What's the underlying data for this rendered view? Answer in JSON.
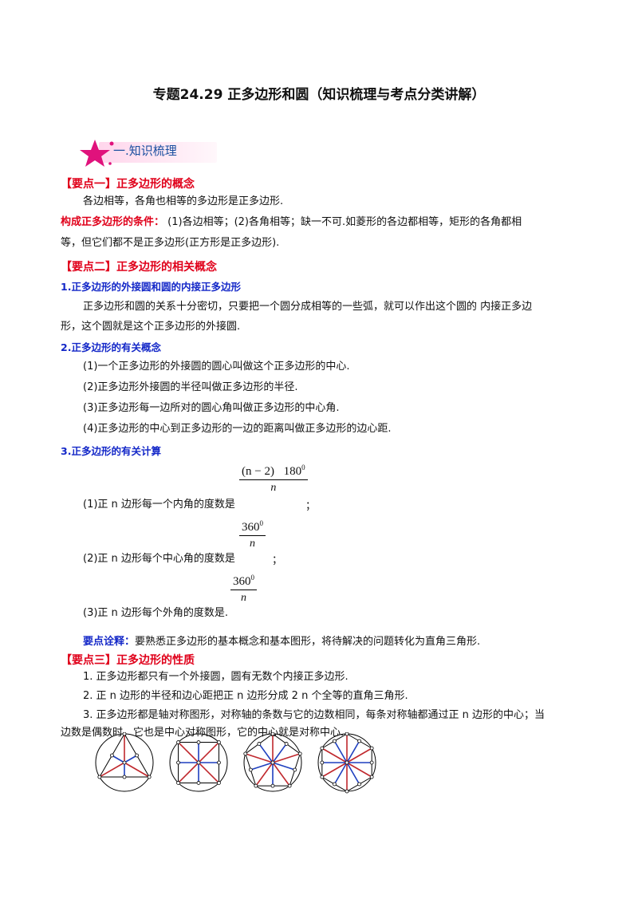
{
  "title": "专题24.29  正多边形和圆（知识梳理与考点分类讲解）",
  "banner": {
    "label": "一.知识梳理",
    "icon": "star-icon"
  },
  "section1": {
    "heading": "【要点一】正多边形的概念",
    "line1": "各边相等，各角也相等的多边形是正多边形.",
    "cond_key": "构成正多边形的条件：",
    "cond_text": "  (1)各边相等；(2)各角相等；缺一不可.如菱形的各边都相等，矩形的各角都相",
    "cond_text2": "等，但它们都不是正多边形(正方形是正多边形)."
  },
  "section2": {
    "heading": "【要点二】正多边形的相关概念",
    "sub1": "1.正多边形的外接圆和圆的内接正多边形",
    "sub1_text1": "正多边形和圆的关系十分密切，只要把一个圆分成相等的一些弧，就可以作出这个圆的 内接正多边",
    "sub1_text2": "形，这个圆就是这个正多边形的外接圆.",
    "sub2": "2.正多边形的有关概念",
    "items": [
      "(1)一个正多边形的外接圆的圆心叫做这个正多边形的中心.",
      "(2)正多边形外接圆的半径叫做正多边形的半径.",
      "(3)正多边形每一边所对的圆心角叫做正多边形的中心角.",
      "(4)正多边形的中心到正多边形的一边的距离叫做正多边形的边心距."
    ],
    "sub3": "3.正多边形的有关计算",
    "calc": [
      {
        "text": "(1)正 n 边形每一个内角的度数是",
        "num": "(n − 2)􀁹180",
        "exp": "0",
        "den": "n",
        "end": "；"
      },
      {
        "text": "(2)正 n 边形每个中心角的度数是",
        "num": "360",
        "exp": "0",
        "den": "n",
        "end": "；"
      },
      {
        "text": "(3)正 n 边形每个外角的度数是.",
        "num": "360",
        "exp": "0",
        "den": "n",
        "end": ""
      }
    ],
    "note_key": "要点诠释：",
    "note_text": "要熟悉正多边形的基本概念和基本图形，将待解决的问题转化为直角三角形."
  },
  "section3": {
    "heading": "【要点三】正多边形的性质",
    "items": [
      "1. 正多边形都只有一个外接圆，圆有无数个内接正多边形.",
      "2. 正 n 边形的半径和边心距把正 n 边形分成 2 n 个全等的直角三角形.",
      "3. 正多边形都是轴对称图形，对称轴的条数与它的边数相同，每条对称轴都通过正 n 边形的中心；当",
      "边数是偶数时，它也是中心对称图形，它的中心就是对称中心."
    ]
  },
  "figures": {
    "polygons": [
      3,
      4,
      5,
      6
    ],
    "colors": {
      "radius": "#c0282d",
      "apothem": "#1e3fbf",
      "outline": "#000000"
    }
  },
  "colors": {
    "red": "#e0001a",
    "blue": "#1428c8",
    "banner": "#1a4fa0"
  }
}
